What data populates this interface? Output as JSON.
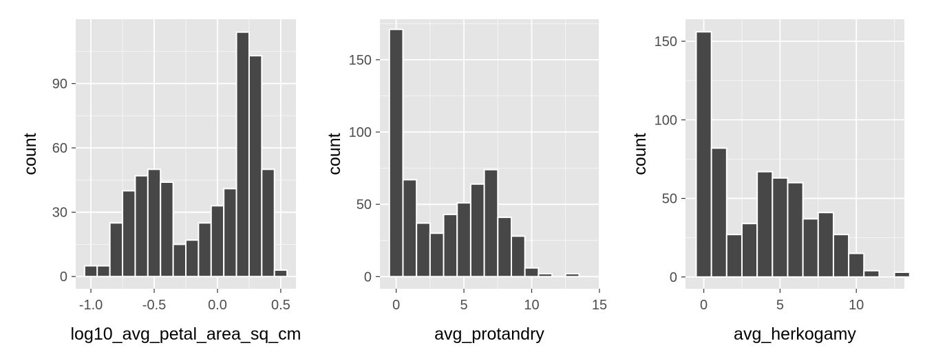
{
  "colors": {
    "panel_background": "#E5E5E5",
    "grid_major": "#FFFFFF",
    "bar_fill": "#474747",
    "bar_outline": "#FFFFFF",
    "axis_text": "#4D4D4D",
    "axis_title": "#000000"
  },
  "chart_data": [
    {
      "type": "bar",
      "subtype": "histogram",
      "xlabel": "log10_avg_petal_area_sq_cm",
      "ylabel": "count",
      "xlim": [
        -1.12,
        0.62
      ],
      "ylim": [
        -5.7,
        120
      ],
      "xticks": [
        -1.0,
        -0.5,
        0.0,
        0.5
      ],
      "xtick_labels": [
        "-1.0",
        "-0.5",
        "0.0",
        "0.5"
      ],
      "yticks": [
        0,
        30,
        60,
        90
      ],
      "ytick_labels": [
        "0",
        "30",
        "60",
        "90"
      ],
      "grid": true,
      "bins": [
        {
          "x0": -1.05,
          "x1": -0.95,
          "count": 5
        },
        {
          "x0": -0.95,
          "x1": -0.85,
          "count": 5
        },
        {
          "x0": -0.85,
          "x1": -0.75,
          "count": 25
        },
        {
          "x0": -0.75,
          "x1": -0.65,
          "count": 40
        },
        {
          "x0": -0.65,
          "x1": -0.55,
          "count": 47
        },
        {
          "x0": -0.55,
          "x1": -0.45,
          "count": 50
        },
        {
          "x0": -0.45,
          "x1": -0.35,
          "count": 44
        },
        {
          "x0": -0.35,
          "x1": -0.25,
          "count": 15
        },
        {
          "x0": -0.25,
          "x1": -0.15,
          "count": 17
        },
        {
          "x0": -0.15,
          "x1": -0.05,
          "count": 25
        },
        {
          "x0": -0.05,
          "x1": 0.05,
          "count": 33
        },
        {
          "x0": 0.05,
          "x1": 0.15,
          "count": 41
        },
        {
          "x0": 0.15,
          "x1": 0.25,
          "count": 114
        },
        {
          "x0": 0.25,
          "x1": 0.35,
          "count": 103
        },
        {
          "x0": 0.35,
          "x1": 0.45,
          "count": 50
        },
        {
          "x0": 0.45,
          "x1": 0.55,
          "count": 3
        }
      ]
    },
    {
      "type": "bar",
      "subtype": "histogram",
      "xlabel": "avg_protandry",
      "ylabel": "count",
      "xlim": [
        -1.2,
        14.95
      ],
      "ylim": [
        -8.4,
        178
      ],
      "xticks": [
        0,
        5,
        10,
        15
      ],
      "xtick_labels": [
        "0",
        "5",
        "10",
        "15"
      ],
      "yticks": [
        0,
        50,
        100,
        150
      ],
      "ytick_labels": [
        "0",
        "50",
        "100",
        "150"
      ],
      "grid": true,
      "bins": [
        {
          "x0": -0.5,
          "x1": 0.5,
          "count": 171
        },
        {
          "x0": 0.5,
          "x1": 1.5,
          "count": 67
        },
        {
          "x0": 1.5,
          "x1": 2.5,
          "count": 37
        },
        {
          "x0": 2.5,
          "x1": 3.5,
          "count": 30
        },
        {
          "x0": 3.5,
          "x1": 4.5,
          "count": 43
        },
        {
          "x0": 4.5,
          "x1": 5.5,
          "count": 51
        },
        {
          "x0": 5.5,
          "x1": 6.5,
          "count": 64
        },
        {
          "x0": 6.5,
          "x1": 7.5,
          "count": 74
        },
        {
          "x0": 7.5,
          "x1": 8.5,
          "count": 41
        },
        {
          "x0": 8.5,
          "x1": 9.5,
          "count": 28
        },
        {
          "x0": 9.5,
          "x1": 10.5,
          "count": 6
        },
        {
          "x0": 10.5,
          "x1": 11.5,
          "count": 2
        },
        {
          "x0": 11.5,
          "x1": 12.5,
          "count": 0
        },
        {
          "x0": 12.5,
          "x1": 13.5,
          "count": 2
        }
      ]
    },
    {
      "type": "bar",
      "subtype": "histogram",
      "xlabel": "avg_herkogamy",
      "ylabel": "count",
      "xlim": [
        -1.2,
        13.15
      ],
      "ylim": [
        -7.5,
        164
      ],
      "xticks": [
        0,
        5,
        10
      ],
      "xtick_labels": [
        "0",
        "5",
        "10"
      ],
      "yticks": [
        0,
        50,
        100,
        150
      ],
      "ytick_labels": [
        "0",
        "50",
        "100",
        "150"
      ],
      "grid": true,
      "bins": [
        {
          "x0": -0.5,
          "x1": 0.5,
          "count": 156
        },
        {
          "x0": 0.5,
          "x1": 1.5,
          "count": 82
        },
        {
          "x0": 1.5,
          "x1": 2.5,
          "count": 27
        },
        {
          "x0": 2.5,
          "x1": 3.5,
          "count": 34
        },
        {
          "x0": 3.5,
          "x1": 4.5,
          "count": 67
        },
        {
          "x0": 4.5,
          "x1": 5.5,
          "count": 63
        },
        {
          "x0": 5.5,
          "x1": 6.5,
          "count": 60
        },
        {
          "x0": 6.5,
          "x1": 7.5,
          "count": 37
        },
        {
          "x0": 7.5,
          "x1": 8.5,
          "count": 41
        },
        {
          "x0": 8.5,
          "x1": 9.5,
          "count": 27
        },
        {
          "x0": 9.5,
          "x1": 10.5,
          "count": 15
        },
        {
          "x0": 10.5,
          "x1": 11.5,
          "count": 4
        },
        {
          "x0": 11.5,
          "x1": 12.5,
          "count": 0
        },
        {
          "x0": 12.5,
          "x1": 13.5,
          "count": 3
        }
      ]
    }
  ]
}
